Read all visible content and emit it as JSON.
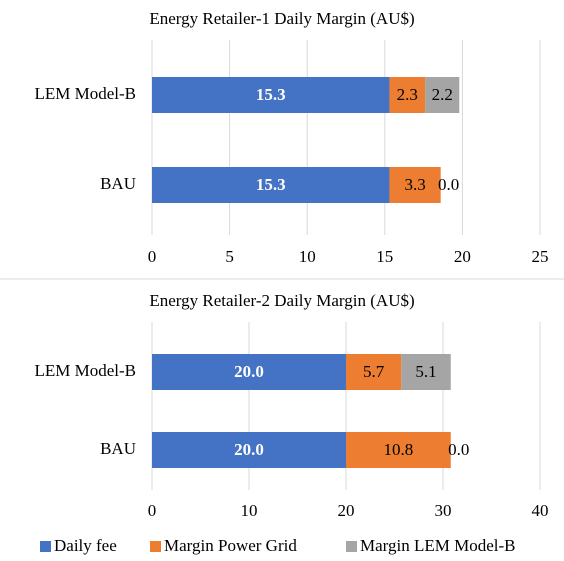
{
  "chart_data": [
    {
      "type": "stacked-bar-horizontal",
      "title": "Energy Retailer-1 Daily Margin (AU$)",
      "categories": [
        "LEM Model-B",
        "BAU"
      ],
      "series": [
        {
          "name": "Daily fee",
          "color": "#4472c4",
          "values": [
            15.3,
            15.3
          ],
          "value_labels": [
            "15.3",
            "15.3"
          ]
        },
        {
          "name": "Margin Power Grid",
          "color": "#ed7d31",
          "values": [
            2.3,
            3.3
          ],
          "value_labels": [
            "2.3",
            "3.3"
          ]
        },
        {
          "name": "Margin LEM Model-B",
          "color": "#a5a5a5",
          "values": [
            2.2,
            0.0
          ],
          "value_labels": [
            "2.2",
            "0.0"
          ]
        }
      ],
      "xlim": [
        0,
        25
      ],
      "xticks": [
        0,
        5,
        10,
        15,
        20,
        25
      ],
      "grid": true
    },
    {
      "type": "stacked-bar-horizontal",
      "title": "Energy Retailer-2 Daily Margin (AU$)",
      "categories": [
        "LEM Model-B",
        "BAU"
      ],
      "series": [
        {
          "color": "#4472c4",
          "values": [
            20.0,
            20.0
          ],
          "value_labels": [
            "20.0",
            "20.0"
          ]
        },
        {
          "color": "#ed7d31",
          "values": [
            5.7,
            10.8
          ],
          "value_labels": [
            "5.7",
            "10.8"
          ]
        },
        {
          "color": "#a5a5a5",
          "values": [
            5.1,
            0.0
          ],
          "value_labels": [
            "5.1",
            "0.0"
          ]
        }
      ],
      "xlim": [
        0,
        40
      ],
      "xticks": [
        0,
        10,
        20,
        30,
        40
      ],
      "grid": true
    }
  ]
}
